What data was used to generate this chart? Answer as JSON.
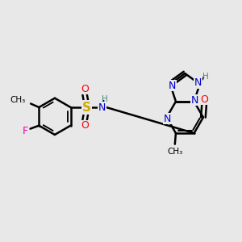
{
  "background_color": "#e8e8e8",
  "figsize": [
    3.0,
    3.0
  ],
  "dpi": 100,
  "bond_color": "#000000",
  "bond_width": 1.8,
  "atom_colors": {
    "C": "#000000",
    "N": "#0000cc",
    "O": "#ff0000",
    "S": "#ccaa00",
    "F": "#ee00aa",
    "H": "#448888"
  },
  "font_size": 9,
  "font_size_small": 7.5
}
